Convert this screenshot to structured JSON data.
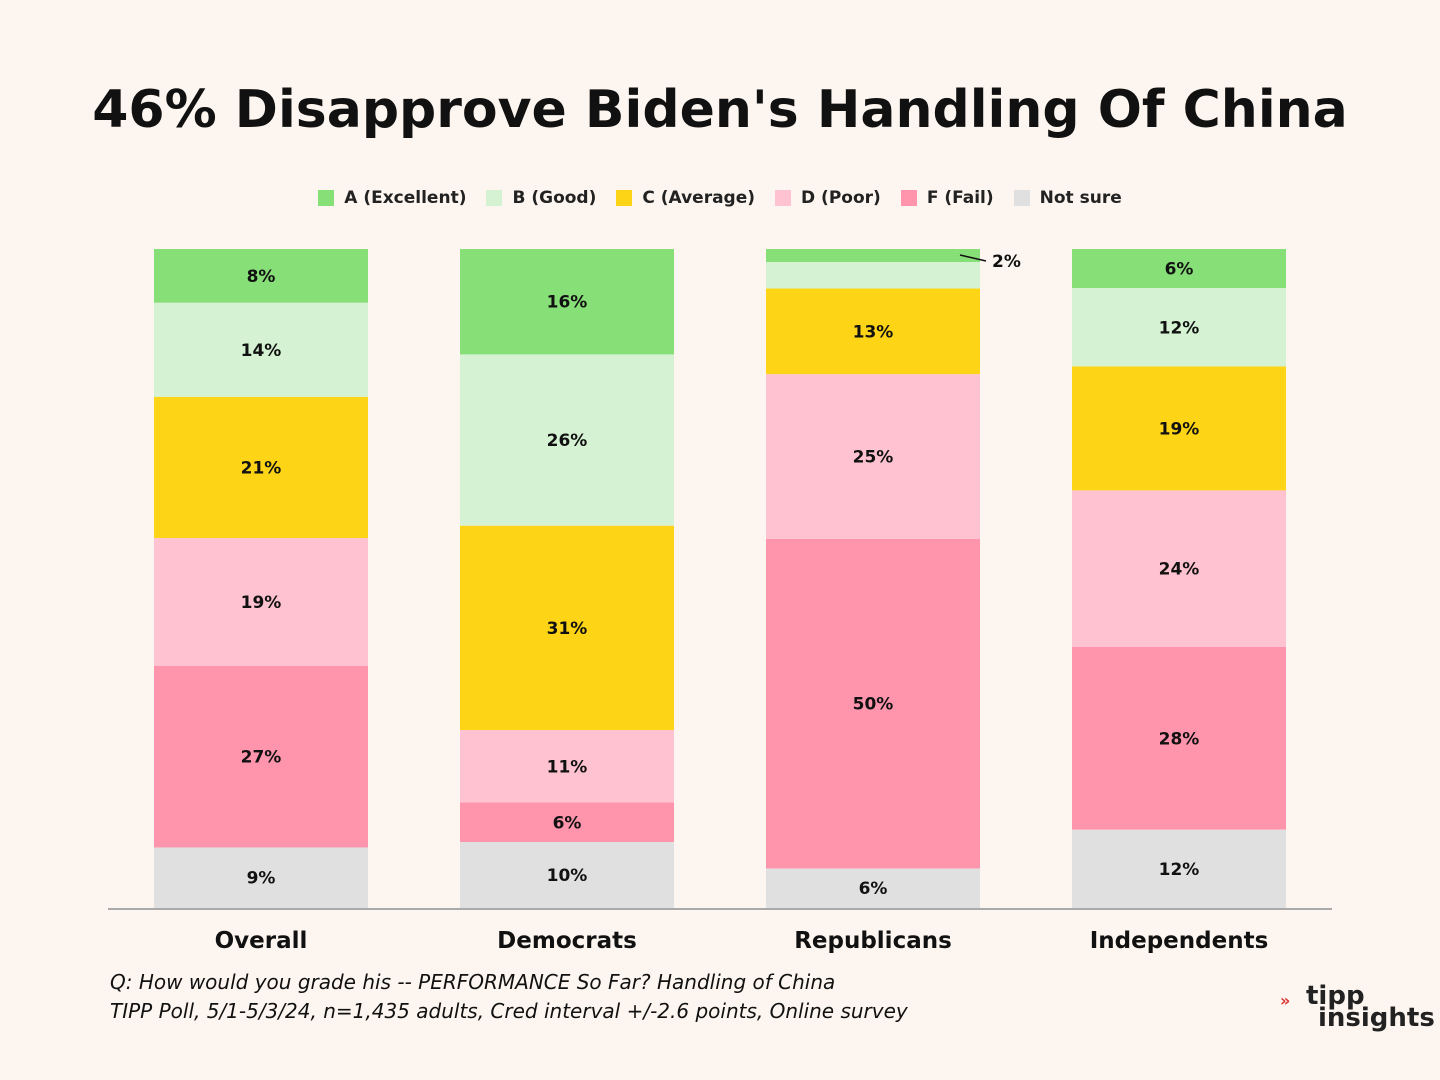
{
  "chart_data": {
    "type": "bar",
    "stacked": true,
    "title": "46% Disapprove Biden's Handling Of China",
    "categories": [
      "Overall",
      "Democrats",
      "Republicans",
      "Independents"
    ],
    "series": [
      {
        "name": "A (Excellent)",
        "color": "#87df78",
        "values": [
          8,
          16,
          2,
          6
        ]
      },
      {
        "name": "B (Good)",
        "color": "#d5f3d3",
        "values": [
          14,
          26,
          4,
          12
        ]
      },
      {
        "name": "C (Average)",
        "color": "#fdd516",
        "values": [
          21,
          31,
          13,
          19
        ]
      },
      {
        "name": "D (Poor)",
        "color": "#fec2d0",
        "values": [
          19,
          11,
          25,
          24
        ]
      },
      {
        "name": "F (Fail)",
        "color": "#ff94ad",
        "values": [
          27,
          6,
          50,
          28
        ]
      },
      {
        "name": "Not sure",
        "color": "#e0e0e0",
        "values": [
          9,
          10,
          6,
          12
        ]
      }
    ],
    "labels": [
      [
        "8%",
        "16%",
        "2%",
        "6%"
      ],
      [
        "14%",
        "26%",
        "",
        "12%"
      ],
      [
        "21%",
        "31%",
        "13%",
        "19%"
      ],
      [
        "19%",
        "11%",
        "25%",
        "24%"
      ],
      [
        "27%",
        "6%",
        "50%",
        "28%"
      ],
      [
        "9%",
        "10%",
        "6%",
        "12%"
      ]
    ],
    "callout": {
      "series": 0,
      "category": 2
    },
    "legend_position": "top-center",
    "grid": false
  },
  "footnote": {
    "line1": "Q:  How would you grade his -- PERFORMANCE So Far?  Handling of China",
    "line2": "TIPP Poll, 5/1-5/3/24, n=1,435 adults, Cred interval +/-2.6 points, Online survey"
  },
  "brand": {
    "arrows": "»",
    "word1": "tipp",
    "word2": "insights"
  }
}
